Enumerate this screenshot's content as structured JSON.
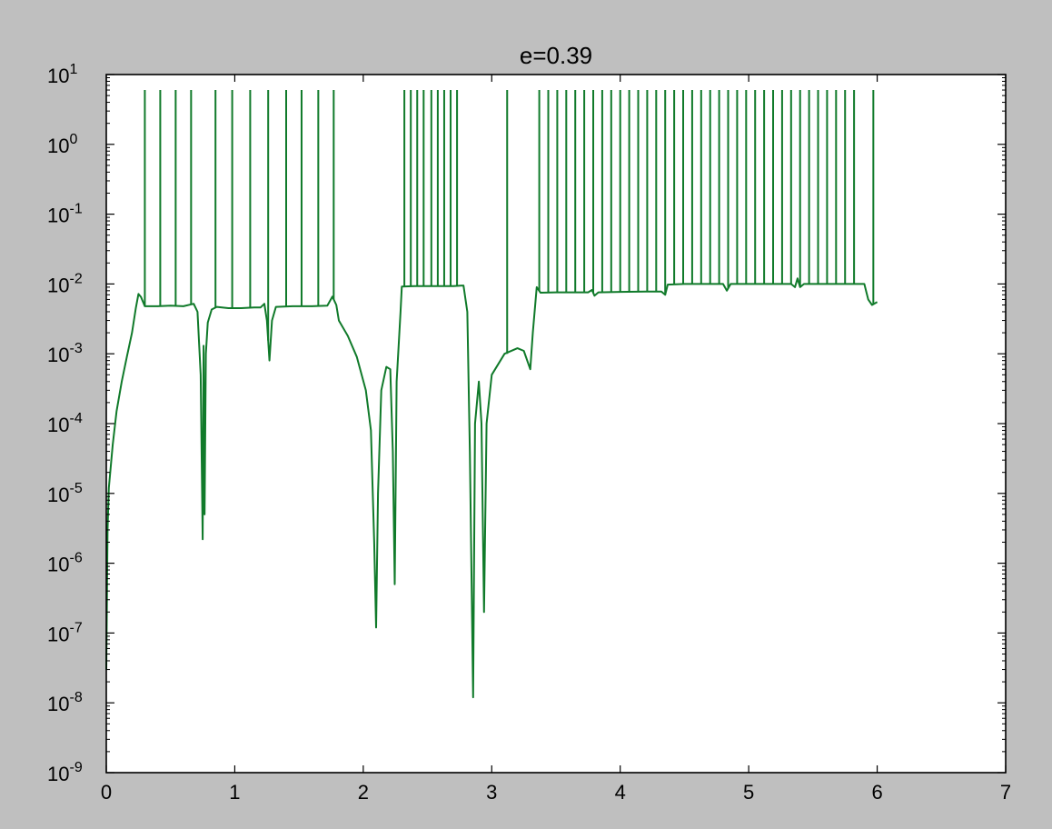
{
  "chart_data": {
    "type": "line",
    "title": "e=0.39",
    "xlabel": "",
    "ylabel": "",
    "xlim": [
      0,
      7
    ],
    "ylim": [
      1e-09,
      10
    ],
    "yscale": "log",
    "grid": false,
    "legend": "none",
    "x_ticks": [
      "0",
      "1",
      "2",
      "3",
      "4",
      "5",
      "6",
      "7"
    ],
    "y_ticks": [
      {
        "base": "10",
        "exp": "-9"
      },
      {
        "base": "10",
        "exp": "-8"
      },
      {
        "base": "10",
        "exp": "-7"
      },
      {
        "base": "10",
        "exp": "-6"
      },
      {
        "base": "10",
        "exp": "-5"
      },
      {
        "base": "10",
        "exp": "-4"
      },
      {
        "base": "10",
        "exp": "-3"
      },
      {
        "base": "10",
        "exp": "-2"
      },
      {
        "base": "10",
        "exp": "-1"
      },
      {
        "base": "10",
        "exp": "0"
      },
      {
        "base": "10",
        "exp": "1"
      }
    ],
    "series": [
      {
        "color": "#107a2a",
        "points": [
          [
            0.0,
            3e-08
          ],
          [
            0.01,
            3e-06
          ],
          [
            0.02,
            1.2e-05
          ],
          [
            0.05,
            5e-05
          ],
          [
            0.08,
            0.00015
          ],
          [
            0.12,
            0.0004
          ],
          [
            0.16,
            0.0009
          ],
          [
            0.2,
            0.002
          ],
          [
            0.23,
            0.0045
          ],
          [
            0.25,
            0.0072
          ],
          [
            0.27,
            0.0065
          ],
          [
            0.3,
            0.0048
          ],
          [
            0.4,
            0.0048
          ],
          [
            0.5,
            0.0049
          ],
          [
            0.6,
            0.0048
          ],
          [
            0.68,
            0.0052
          ],
          [
            0.71,
            0.004
          ],
          [
            0.735,
            0.0005
          ],
          [
            0.75,
            2.2e-06
          ],
          [
            0.757,
            0.0013
          ],
          [
            0.765,
            5e-06
          ],
          [
            0.775,
            0.001
          ],
          [
            0.79,
            0.0028
          ],
          [
            0.82,
            0.0043
          ],
          [
            0.86,
            0.0047
          ],
          [
            0.95,
            0.0045
          ],
          [
            1.05,
            0.0045
          ],
          [
            1.15,
            0.0046
          ],
          [
            1.2,
            0.0046
          ],
          [
            1.23,
            0.0052
          ],
          [
            1.25,
            0.003
          ],
          [
            1.27,
            0.0008
          ],
          [
            1.29,
            0.003
          ],
          [
            1.32,
            0.0047
          ],
          [
            1.45,
            0.0048
          ],
          [
            1.6,
            0.0048
          ],
          [
            1.72,
            0.0049
          ],
          [
            1.76,
            0.0066
          ],
          [
            1.79,
            0.005
          ],
          [
            1.81,
            0.003
          ],
          [
            1.88,
            0.0018
          ],
          [
            1.95,
            0.0009
          ],
          [
            2.02,
            0.0003
          ],
          [
            2.06,
            8e-05
          ],
          [
            2.085,
            2e-06
          ],
          [
            2.1,
            1.2e-07
          ],
          [
            2.115,
            1e-05
          ],
          [
            2.14,
            0.0003
          ],
          [
            2.18,
            0.00065
          ],
          [
            2.21,
            0.0006
          ],
          [
            2.23,
            4e-05
          ],
          [
            2.245,
            5e-07
          ],
          [
            2.26,
            0.0004
          ],
          [
            2.29,
            0.004
          ],
          [
            2.3,
            0.0092
          ],
          [
            2.4,
            0.0093
          ],
          [
            2.5,
            0.0093
          ],
          [
            2.6,
            0.0093
          ],
          [
            2.7,
            0.0093
          ],
          [
            2.78,
            0.0095
          ],
          [
            2.81,
            0.004
          ],
          [
            2.83,
            4e-05
          ],
          [
            2.855,
            1.2e-08
          ],
          [
            2.87,
            0.0001
          ],
          [
            2.9,
            0.0004
          ],
          [
            2.92,
            0.0001
          ],
          [
            2.94,
            2e-07
          ],
          [
            2.96,
            0.0001
          ],
          [
            3.0,
            0.0005
          ],
          [
            3.1,
            0.001
          ],
          [
            3.2,
            0.0012
          ],
          [
            3.25,
            0.0011
          ],
          [
            3.3,
            0.0006
          ],
          [
            3.32,
            0.002
          ],
          [
            3.35,
            0.009
          ],
          [
            3.38,
            0.0075
          ],
          [
            3.5,
            0.0076
          ],
          [
            3.6,
            0.0076
          ],
          [
            3.75,
            0.0076
          ],
          [
            3.78,
            0.0082
          ],
          [
            3.8,
            0.0068
          ],
          [
            3.83,
            0.0076
          ],
          [
            4.0,
            0.0077
          ],
          [
            4.2,
            0.0078
          ],
          [
            4.32,
            0.0078
          ],
          [
            4.35,
            0.007
          ],
          [
            4.37,
            0.0098
          ],
          [
            4.5,
            0.01
          ],
          [
            4.7,
            0.01
          ],
          [
            4.8,
            0.01
          ],
          [
            4.83,
            0.008
          ],
          [
            4.86,
            0.01
          ],
          [
            5.0,
            0.01
          ],
          [
            5.2,
            0.01
          ],
          [
            5.33,
            0.01
          ],
          [
            5.36,
            0.009
          ],
          [
            5.38,
            0.012
          ],
          [
            5.4,
            0.009
          ],
          [
            5.43,
            0.01
          ],
          [
            5.6,
            0.01
          ],
          [
            5.8,
            0.01
          ],
          [
            5.9,
            0.01
          ],
          [
            5.93,
            0.006
          ],
          [
            5.96,
            0.005
          ],
          [
            6.0,
            0.0055
          ]
        ]
      }
    ],
    "spikes": {
      "top": 6.0,
      "positions": [
        0.3,
        0.42,
        0.54,
        0.66,
        0.85,
        0.98,
        1.12,
        1.26,
        1.4,
        1.52,
        1.65,
        1.77,
        2.32,
        2.37,
        2.42,
        2.47,
        2.53,
        2.58,
        2.63,
        2.68,
        2.73,
        3.12,
        3.37,
        3.44,
        3.51,
        3.58,
        3.65,
        3.72,
        3.79,
        3.86,
        3.93,
        4.0,
        4.07,
        4.14,
        4.21,
        4.28,
        4.35,
        4.42,
        4.49,
        4.56,
        4.63,
        4.7,
        4.77,
        4.84,
        4.91,
        4.98,
        5.05,
        5.12,
        5.19,
        5.26,
        5.33,
        5.4,
        5.47,
        5.54,
        5.61,
        5.68,
        5.75,
        5.82,
        5.97
      ]
    }
  }
}
